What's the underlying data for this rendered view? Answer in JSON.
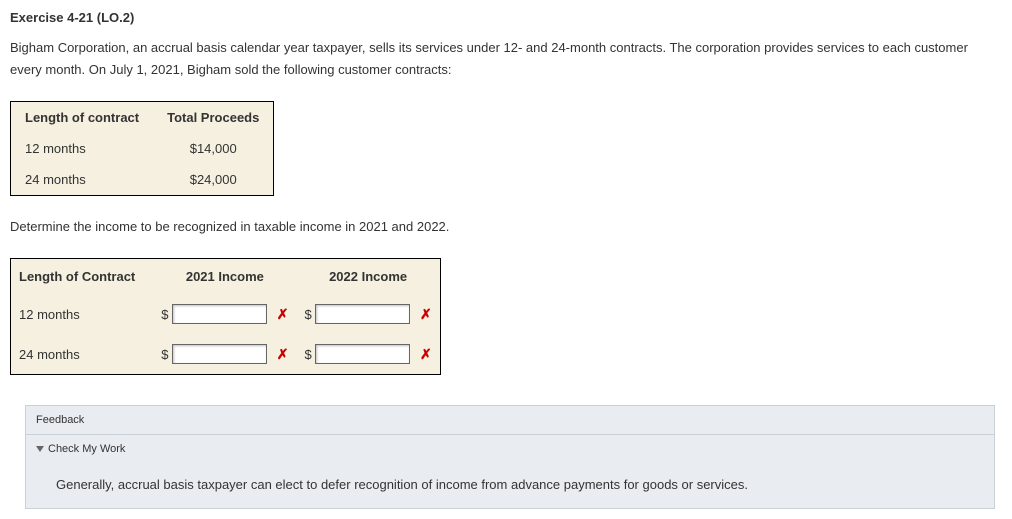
{
  "exercise": {
    "title": "Exercise 4-21 (LO.2)",
    "intro": "Bigham Corporation, an accrual basis calendar year taxpayer, sells its services under 12- and 24-month contracts. The corporation provides services to each customer every month. On July 1, 2021, Bigham sold the following customer contracts:"
  },
  "proceeds_table": {
    "columns": [
      "Length of contract",
      "Total Proceeds"
    ],
    "rows": [
      {
        "label": "12 months",
        "value": "$14,000"
      },
      {
        "label": "24 months",
        "value": "$24,000"
      }
    ]
  },
  "instruction": "Determine the income to be recognized in taxable income in 2021 and 2022.",
  "answer_table": {
    "columns": [
      "Length of Contract",
      "2021 Income",
      "2022 Income"
    ],
    "rows": [
      {
        "label": "12 months",
        "y2021": "",
        "y2022": "",
        "mark2021": "x",
        "mark2022": "x"
      },
      {
        "label": "24 months",
        "y2021": "",
        "y2022": "",
        "mark2021": "x",
        "mark2022": "x"
      }
    ],
    "currency_symbol": "$"
  },
  "feedback": {
    "label": "Feedback",
    "toggle_label": "Check My Work",
    "body": "Generally, accrual basis taxpayer can elect to defer recognition of income from advance payments for goods or services."
  },
  "style": {
    "mark_color": "#cc0000",
    "mark_glyph": "✗",
    "table_bg": "#f5f0e0",
    "feedback_bg": "#e9edf1"
  }
}
